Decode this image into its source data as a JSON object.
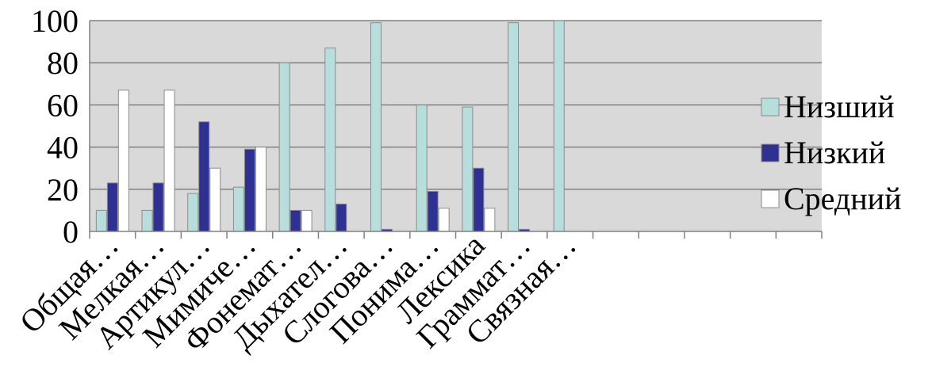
{
  "chart_data": {
    "type": "bar",
    "title": "",
    "xlabel": "",
    "ylabel": "",
    "ylim": [
      0,
      100
    ],
    "yticks": [
      "0",
      "20",
      "40",
      "60",
      "80",
      "100"
    ],
    "grid": "horizontal",
    "legend_position": "right",
    "categories": [
      "Общая…",
      "Мелкая…",
      "Артикул…",
      "Мимиче…",
      "Фонемат…",
      "Дыхател…",
      "Слогова…",
      "Понима…",
      "Лексика",
      "Граммат…",
      "Связная…",
      "",
      "",
      "",
      "",
      ""
    ],
    "series": [
      {
        "name": "Низший",
        "color": "#b7dedd",
        "values": [
          10,
          10,
          18,
          21,
          80,
          87,
          99,
          60,
          59,
          99,
          100,
          null,
          null,
          null,
          null,
          null
        ]
      },
      {
        "name": "Низкий",
        "color": "#2e3192",
        "values": [
          23,
          23,
          52,
          39,
          10,
          13,
          1,
          19,
          30,
          1,
          null,
          null,
          null,
          null,
          null,
          null
        ]
      },
      {
        "name": "Средний",
        "color": "#ffffff",
        "values": [
          67,
          67,
          30,
          40,
          10,
          null,
          null,
          11,
          11,
          null,
          null,
          null,
          null,
          null,
          null,
          null
        ]
      }
    ],
    "colors": {
      "plot_background": "#d9d9d9",
      "gridline": "#808080",
      "bar_outline": "#8c8c8c"
    }
  }
}
